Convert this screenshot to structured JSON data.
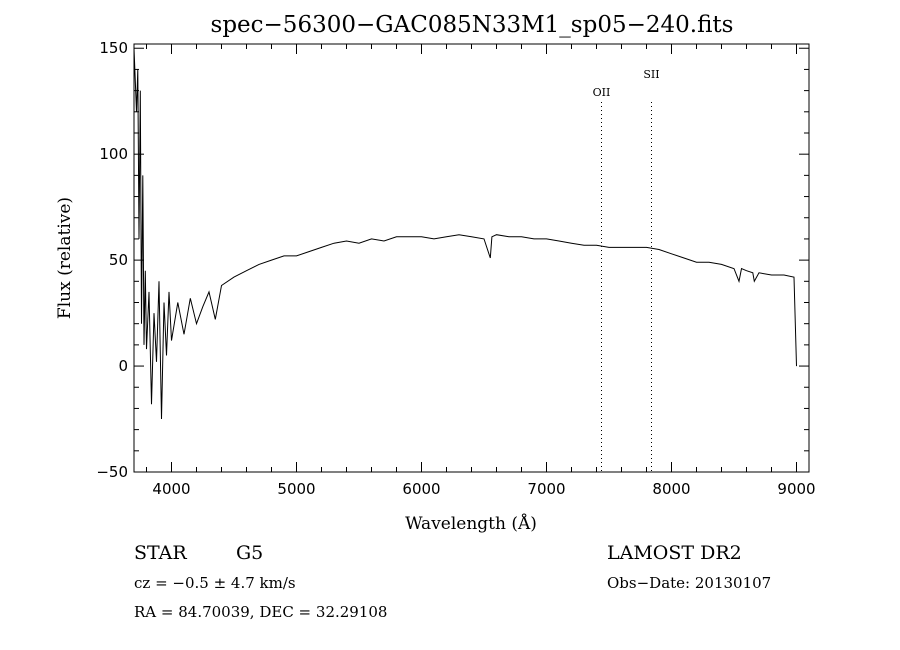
{
  "chart_data": {
    "type": "line",
    "title": "spec−56300−GAC085N33M1_sp05−240.fits",
    "xlabel": "Wavelength (Å)",
    "ylabel": "Flux (relative)",
    "xlim": [
      3700,
      9100
    ],
    "ylim": [
      -50,
      152
    ],
    "x_ticks": [
      "4000",
      "5000",
      "6000",
      "7000",
      "8000",
      "9000"
    ],
    "y_ticks": [
      "−50",
      "0",
      "50",
      "100",
      "150"
    ],
    "x_tick_values": [
      4000,
      5000,
      6000,
      7000,
      8000,
      9000
    ],
    "y_tick_values": [
      -50,
      0,
      50,
      100,
      150
    ],
    "grid": false,
    "series": [
      {
        "x": [
          3700,
          3720,
          3730,
          3740,
          3750,
          3760,
          3770,
          3780,
          3790,
          3800,
          3820,
          3840,
          3860,
          3880,
          3900,
          3920,
          3940,
          3960,
          3980,
          4000,
          4050,
          4100,
          4150,
          4200,
          4250,
          4300,
          4350,
          4400,
          4500,
          4600,
          4700,
          4800,
          4900,
          5000,
          5100,
          5200,
          5300,
          5400,
          5500,
          5600,
          5700,
          5800,
          5900,
          6000,
          6100,
          6200,
          6300,
          6400,
          6500,
          6550,
          6563,
          6600,
          6700,
          6800,
          6900,
          7000,
          7100,
          7200,
          7300,
          7400,
          7500,
          7600,
          7700,
          7800,
          7900,
          8000,
          8100,
          8200,
          8300,
          8400,
          8500,
          8540,
          8560,
          8600,
          8650,
          8662,
          8700,
          8800,
          8900,
          8980,
          9000
        ],
        "y": [
          150,
          120,
          140,
          60,
          130,
          20,
          90,
          10,
          45,
          8,
          35,
          -18,
          25,
          2,
          40,
          -25,
          30,
          5,
          35,
          12,
          30,
          15,
          32,
          20,
          28,
          35,
          22,
          38,
          42,
          45,
          48,
          50,
          52,
          52,
          54,
          56,
          58,
          59,
          58,
          60,
          59,
          61,
          61,
          61,
          60,
          61,
          62,
          61,
          60,
          51,
          61,
          62,
          61,
          61,
          60,
          60,
          59,
          58,
          57,
          57,
          56,
          56,
          56,
          56,
          55,
          53,
          51,
          49,
          49,
          48,
          46,
          40,
          46,
          45,
          44,
          40,
          44,
          43,
          43,
          42,
          0
        ]
      }
    ],
    "annotations": [
      {
        "label": "OII",
        "x": 7440
      },
      {
        "label": "SII",
        "x": 7840
      }
    ]
  },
  "info": {
    "object_class": "STAR",
    "subclass": "G5",
    "survey": "LAMOST DR2",
    "cz": "cz = −0.5 ± 4.7 km/s",
    "obs_date": "Obs−Date: 20130107",
    "coords": "RA =  84.70039, DEC =  32.29108"
  }
}
